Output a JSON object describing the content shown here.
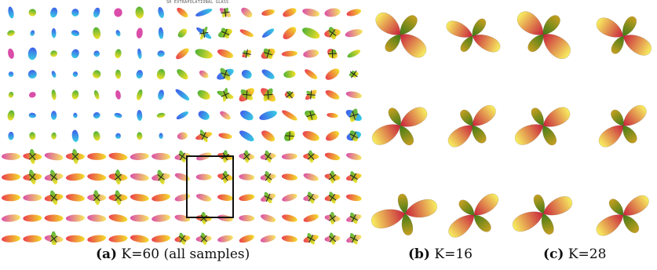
{
  "figure": {
    "top_label": "SH EXTRAPOLATIONAL GLASS",
    "panels": [
      {
        "id": "a",
        "letter": "(a)",
        "text": "K=60 (all samples)"
      },
      {
        "id": "b",
        "letter": "(b)",
        "text": "K=16"
      },
      {
        "id": "c",
        "letter": "(c)",
        "text": "K=28"
      }
    ],
    "colors": {
      "red": "#e8283c",
      "magenta": "#d63aa0",
      "yellow": "#f2dc12",
      "green": "#3aa820",
      "blue": "#2a4be8",
      "cyan": "#22c8e0",
      "dark": "#2a2a18",
      "orange": "#ee8a2a"
    }
  }
}
